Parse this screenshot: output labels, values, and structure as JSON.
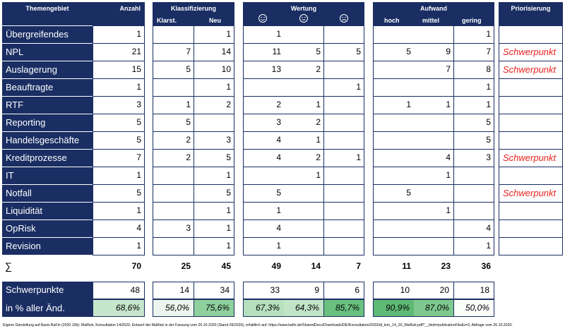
{
  "headers": {
    "themengebiet": "Themengebiet",
    "anzahl": "Anzahl",
    "klassifizierung": "Klassifizierung",
    "klarst": "Klarst.",
    "neu": "Neu",
    "wertung": "Wertung",
    "aufwand": "Aufwand",
    "hoch": "hoch",
    "mittel": "mittel",
    "gering": "gering",
    "priorisierung": "Priorisierung"
  },
  "rows": [
    {
      "topic": "Übergreifendes",
      "anzahl": "1",
      "klarst": "",
      "neu": "1",
      "pos": "1",
      "neutral": "",
      "neg": "",
      "hoch": "",
      "mittel": "",
      "gering": "1",
      "prio": ""
    },
    {
      "topic": "NPL",
      "anzahl": "21",
      "klarst": "7",
      "neu": "14",
      "pos": "11",
      "neutral": "5",
      "neg": "5",
      "hoch": "5",
      "mittel": "9",
      "gering": "7",
      "prio": "Schwerpunkt"
    },
    {
      "topic": "Auslagerung",
      "anzahl": "15",
      "klarst": "5",
      "neu": "10",
      "pos": "13",
      "neutral": "2",
      "neg": "",
      "hoch": "",
      "mittel": "7",
      "gering": "8",
      "prio": "Schwerpunkt"
    },
    {
      "topic": "Beauftragte",
      "anzahl": "1",
      "klarst": "",
      "neu": "1",
      "pos": "",
      "neutral": "",
      "neg": "1",
      "hoch": "",
      "mittel": "",
      "gering": "1",
      "prio": ""
    },
    {
      "topic": "RTF",
      "anzahl": "3",
      "klarst": "1",
      "neu": "2",
      "pos": "2",
      "neutral": "1",
      "neg": "",
      "hoch": "1",
      "mittel": "1",
      "gering": "1",
      "prio": ""
    },
    {
      "topic": "Reporting",
      "anzahl": "5",
      "klarst": "5",
      "neu": "",
      "pos": "3",
      "neutral": "2",
      "neg": "",
      "hoch": "",
      "mittel": "",
      "gering": "5",
      "prio": ""
    },
    {
      "topic": "Handelsgeschäfte",
      "anzahl": "5",
      "klarst": "2",
      "neu": "3",
      "pos": "4",
      "neutral": "1",
      "neg": "",
      "hoch": "",
      "mittel": "",
      "gering": "5",
      "prio": ""
    },
    {
      "topic": "Kreditprozesse",
      "anzahl": "7",
      "klarst": "2",
      "neu": "5",
      "pos": "4",
      "neutral": "2",
      "neg": "1",
      "hoch": "",
      "mittel": "4",
      "gering": "3",
      "prio": "Schwerpunkt"
    },
    {
      "topic": "IT",
      "anzahl": "1",
      "klarst": "",
      "neu": "1",
      "pos": "",
      "neutral": "1",
      "neg": "",
      "hoch": "",
      "mittel": "1",
      "gering": "",
      "prio": ""
    },
    {
      "topic": "Notfall",
      "anzahl": "5",
      "klarst": "",
      "neu": "5",
      "pos": "5",
      "neutral": "",
      "neg": "",
      "hoch": "5",
      "mittel": "",
      "gering": "",
      "prio": "Schwerpunkt"
    },
    {
      "topic": "Liquidität",
      "anzahl": "1",
      "klarst": "",
      "neu": "1",
      "pos": "1",
      "neutral": "",
      "neg": "",
      "hoch": "",
      "mittel": "1",
      "gering": "",
      "prio": ""
    },
    {
      "topic": "OpRisk",
      "anzahl": "4",
      "klarst": "3",
      "neu": "1",
      "pos": "4",
      "neutral": "",
      "neg": "",
      "hoch": "",
      "mittel": "",
      "gering": "4",
      "prio": ""
    },
    {
      "topic": "Revision",
      "anzahl": "1",
      "klarst": "",
      "neu": "1",
      "pos": "1",
      "neutral": "",
      "neg": "",
      "hoch": "",
      "mittel": "",
      "gering": "1",
      "prio": ""
    }
  ],
  "sums": {
    "symbol": "∑",
    "anzahl": "70",
    "klarst": "25",
    "neu": "45",
    "pos": "49",
    "neutral": "14",
    "neg": "7",
    "hoch": "11",
    "mittel": "23",
    "gering": "36"
  },
  "schwerpunkte": {
    "label": "Schwerpunkte",
    "anzahl": "48",
    "klarst": "14",
    "neu": "34",
    "pos": "33",
    "neutral": "9",
    "neg": "6",
    "hoch": "10",
    "mittel": "20",
    "gering": "18"
  },
  "percent": {
    "label": "in % aller Änd.",
    "anzahl": "68,6%",
    "klarst": "56,0%",
    "neu": "75,6%",
    "pos": "67,3%",
    "neutral": "64,3%",
    "neg": "85,7%",
    "hoch": "90,9%",
    "mittel": "87,0%",
    "gering": "50,0%"
  },
  "colors": {
    "navy": "#1a2e63",
    "red": "#e8231f",
    "anzahl": "#c6e6cc",
    "klarst": "#ebf5ed",
    "neu": "#8fd19d",
    "pos": "#b6e0be",
    "neutral": "#c2e5c8",
    "neg": "#69c07f",
    "hoch": "#5fba76",
    "mittel": "#7ec98f",
    "gering": "#fbfdfb"
  },
  "icons": {
    "pos": "smiley-happy-icon",
    "neutral": "smiley-neutral-icon",
    "neg": "smiley-sad-icon"
  },
  "footnote": "Eigene Darstellung auf Basis BaFin (2020 10b): MaRisk, Konsultation 14/2020, Entwurf der MaRisk in der Fassung vom 26.10.2020 (Stand 09/2020), erhältlich auf: https://www.bafin.de/SharedDocs/Downloads/DE/Konsultation/2020/dl_kon_14_20_MaRisk.pdf?__blob=publicationFile&v=3, Abfrage vom 26.10.2020."
}
